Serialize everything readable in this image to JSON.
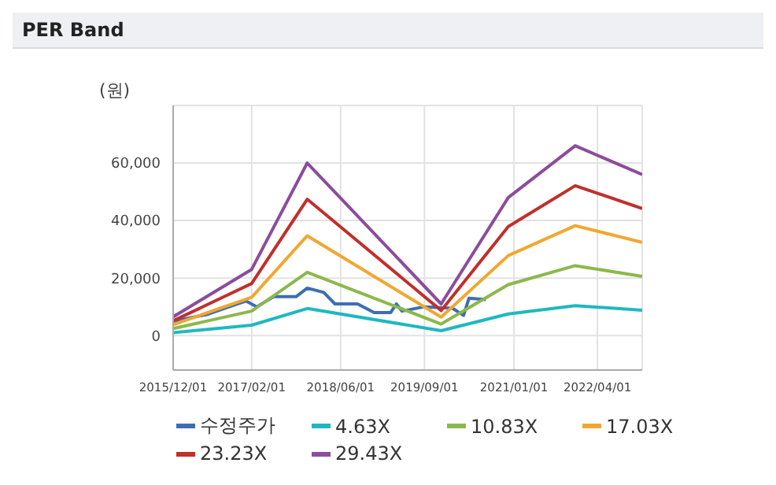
{
  "chart_data": {
    "type": "line",
    "title": "PER Band",
    "ylabel": "(원)",
    "xlim": [
      "2015-12-01",
      "2022-12-01"
    ],
    "xticks": [
      {
        "value": "2015-12-01",
        "label": "2015/12/01"
      },
      {
        "value": "2017-02-01",
        "label": "2017/02/01"
      },
      {
        "value": "2018-06-01",
        "label": "2018/06/01"
      },
      {
        "value": "2019-09-01",
        "label": "2019/09/01"
      },
      {
        "value": "2021-01-01",
        "label": "2021/01/01"
      },
      {
        "value": "2022-04-01",
        "label": "2022/04/01"
      }
    ],
    "ylim": [
      -12000,
      80000
    ],
    "yticks": [
      {
        "value": 0,
        "label": "0"
      },
      {
        "value": 20000,
        "label": "20,000"
      },
      {
        "value": 40000,
        "label": "40,000"
      },
      {
        "value": 60000,
        "label": "60,000"
      }
    ],
    "grid": true,
    "legend": "bottom",
    "marker": "none",
    "line_style": "solid",
    "series": [
      {
        "name": "수정주가",
        "color": "#3c6eb4",
        "x": [
          "2015-12-01",
          "2016-06-01",
          "2016-10-01",
          "2017-01-01",
          "2017-03-01",
          "2017-06-01",
          "2017-10-01",
          "2017-12-01",
          "2018-03-01",
          "2018-05-01",
          "2018-09-01",
          "2018-12-01",
          "2019-03-01",
          "2019-04-01",
          "2019-05-01",
          "2019-09-01",
          "2020-02-01",
          "2020-04-01",
          "2020-05-01",
          "2020-08-01"
        ],
        "values": [
          5000,
          7300,
          10000,
          12000,
          10000,
          13500,
          13500,
          16500,
          15000,
          11000,
          11000,
          8000,
          8000,
          11000,
          8500,
          10000,
          9500,
          7000,
          13000,
          12500
        ]
      },
      {
        "name": "4.63X",
        "color": "#1fb8c0",
        "x": [
          "2015-12-01",
          "2017-02-01",
          "2017-12-01",
          "2019-12-01",
          "2020-12-01",
          "2021-12-01",
          "2022-12-01"
        ],
        "values": [
          1000,
          3600,
          9400,
          1700,
          7500,
          10400,
          8800
        ]
      },
      {
        "name": "10.83X",
        "color": "#8cb84c",
        "x": [
          "2015-12-01",
          "2017-02-01",
          "2017-12-01",
          "2019-12-01",
          "2020-12-01",
          "2021-12-01",
          "2022-12-01"
        ],
        "values": [
          2400,
          8500,
          22000,
          4000,
          17700,
          24300,
          20600
        ]
      },
      {
        "name": "17.03X",
        "color": "#f0a830",
        "x": [
          "2015-12-01",
          "2017-02-01",
          "2017-12-01",
          "2019-12-01",
          "2020-12-01",
          "2021-12-01",
          "2022-12-01"
        ],
        "values": [
          3800,
          13300,
          34700,
          6400,
          27800,
          38200,
          32400
        ]
      },
      {
        "name": "23.23X",
        "color": "#c0302c",
        "x": [
          "2015-12-01",
          "2017-02-01",
          "2017-12-01",
          "2019-12-01",
          "2020-12-01",
          "2021-12-01",
          "2022-12-01"
        ],
        "values": [
          5100,
          18100,
          47400,
          8700,
          37900,
          52100,
          44200
        ]
      },
      {
        "name": "29.43X",
        "color": "#8c4c9c",
        "x": [
          "2015-12-01",
          "2017-02-01",
          "2017-12-01",
          "2019-12-01",
          "2020-12-01",
          "2021-12-01",
          "2022-12-01"
        ],
        "values": [
          6500,
          23000,
          60000,
          11000,
          48000,
          66000,
          56000
        ]
      }
    ]
  }
}
